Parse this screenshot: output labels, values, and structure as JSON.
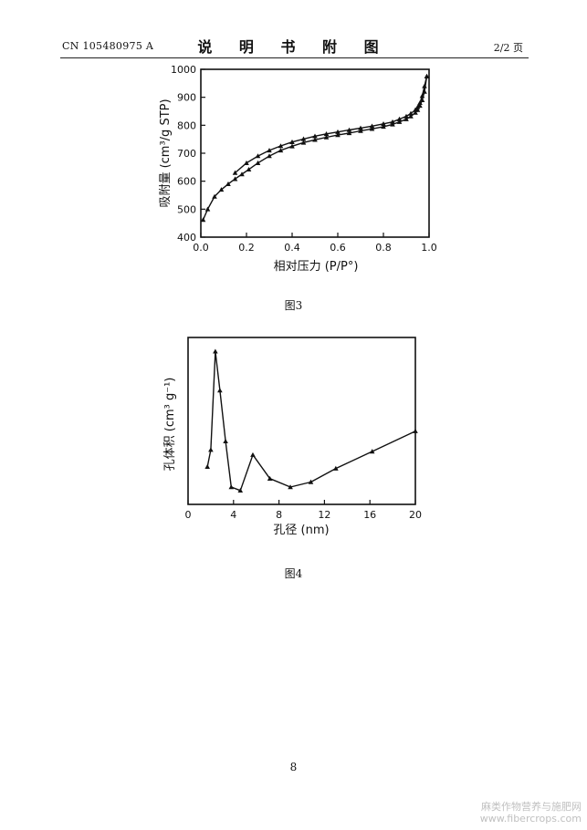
{
  "header": {
    "doc_number": "CN 105480975 A",
    "title": "说 明 书 附 图",
    "page_of": "2/2 页"
  },
  "figures": [
    {
      "caption": "图3"
    },
    {
      "caption": "图4"
    }
  ],
  "footer": {
    "page_number": "8"
  },
  "watermark": {
    "line1": "麻类作物营养与施肥网",
    "line2": "www.fibercrops.com"
  },
  "chart_data": [
    {
      "type": "line",
      "xlabel": "相对压力 (P/P°)",
      "ylabel": "吸附量 (cm³/g STP)",
      "xlim": [
        0.0,
        1.0
      ],
      "ylim": [
        400,
        1000
      ],
      "xticks": [
        "0.0",
        "0.2",
        "0.4",
        "0.6",
        "0.8",
        "1.0"
      ],
      "yticks": [
        "400",
        "500",
        "600",
        "700",
        "800",
        "900",
        "1000"
      ],
      "marker": "triangle",
      "series": [
        {
          "x": [
            0.01,
            0.03,
            0.06,
            0.09,
            0.12,
            0.15,
            0.18,
            0.21,
            0.25,
            0.3,
            0.35,
            0.4,
            0.45,
            0.5,
            0.55,
            0.6,
            0.65,
            0.7,
            0.75,
            0.8,
            0.84,
            0.87,
            0.9,
            0.92,
            0.94,
            0.95,
            0.96,
            0.97,
            0.98,
            0.99
          ],
          "y": [
            462,
            500,
            545,
            570,
            590,
            608,
            625,
            642,
            665,
            690,
            710,
            725,
            738,
            748,
            757,
            765,
            772,
            780,
            787,
            795,
            803,
            812,
            822,
            832,
            845,
            855,
            870,
            890,
            920,
            975
          ]
        },
        {
          "x": [
            0.99,
            0.98,
            0.97,
            0.96,
            0.95,
            0.94,
            0.92,
            0.9,
            0.87,
            0.84,
            0.8,
            0.75,
            0.7,
            0.65,
            0.6,
            0.55,
            0.5,
            0.45,
            0.4,
            0.35,
            0.3,
            0.25,
            0.2,
            0.15
          ],
          "y": [
            975,
            940,
            905,
            880,
            865,
            855,
            842,
            832,
            822,
            812,
            805,
            797,
            790,
            783,
            776,
            769,
            761,
            751,
            740,
            726,
            710,
            690,
            665,
            630
          ]
        }
      ]
    },
    {
      "type": "line",
      "xlabel": "孔径 (nm)",
      "ylabel": "孔体积 (cm³ g⁻¹)",
      "xlim": [
        0,
        20
      ],
      "xticks": [
        "0",
        "4",
        "8",
        "12",
        "16",
        "20"
      ],
      "marker": "triangle",
      "series": [
        {
          "x": [
            1.7,
            2.0,
            2.4,
            2.8,
            3.3,
            3.8,
            4.6,
            5.7,
            7.2,
            9.0,
            10.8,
            13.0,
            16.2,
            20.0
          ],
          "y": [
            0.17,
            0.27,
            0.85,
            0.62,
            0.32,
            0.05,
            0.03,
            0.24,
            0.1,
            0.05,
            0.08,
            0.16,
            0.26,
            0.38
          ]
        }
      ]
    }
  ]
}
